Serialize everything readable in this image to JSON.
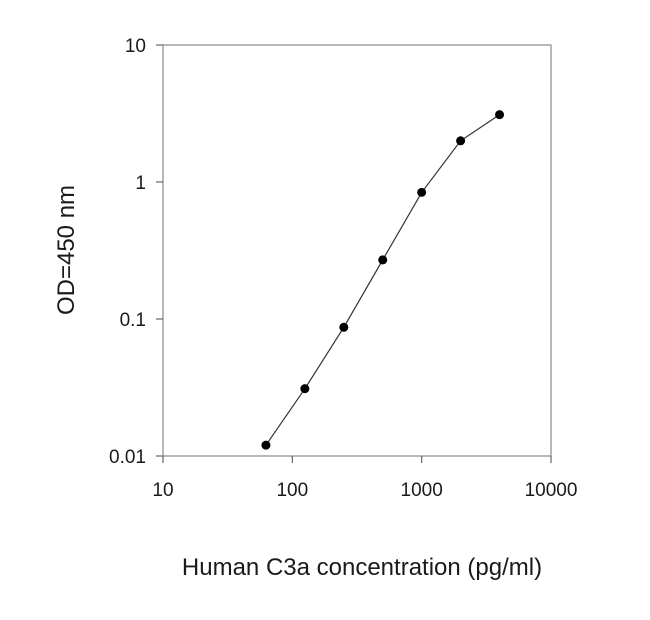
{
  "chart_data": {
    "type": "line",
    "title": "",
    "xlabel": "Human C3a concentration (pg/ml)",
    "ylabel": "OD=450 nm",
    "x_scale": "log",
    "y_scale": "log",
    "xlim": [
      10,
      10000
    ],
    "ylim": [
      0.01,
      10
    ],
    "x_ticks": [
      {
        "value": 10,
        "label": "10"
      },
      {
        "value": 100,
        "label": "100"
      },
      {
        "value": 1000,
        "label": "1000"
      },
      {
        "value": 10000,
        "label": "10000"
      }
    ],
    "y_ticks": [
      {
        "value": 0.01,
        "label": "0.01"
      },
      {
        "value": 0.1,
        "label": "0.1"
      },
      {
        "value": 1,
        "label": "1"
      },
      {
        "value": 10,
        "label": "10"
      }
    ],
    "grid": false,
    "legend": false,
    "line_color": "#333333",
    "marker_color": "#000000",
    "series": [
      {
        "x": [
          62.5,
          125,
          250,
          500,
          1000,
          2000,
          4000
        ],
        "y": [
          0.012,
          0.031,
          0.087,
          0.27,
          0.84,
          2.0,
          3.1
        ]
      }
    ]
  }
}
